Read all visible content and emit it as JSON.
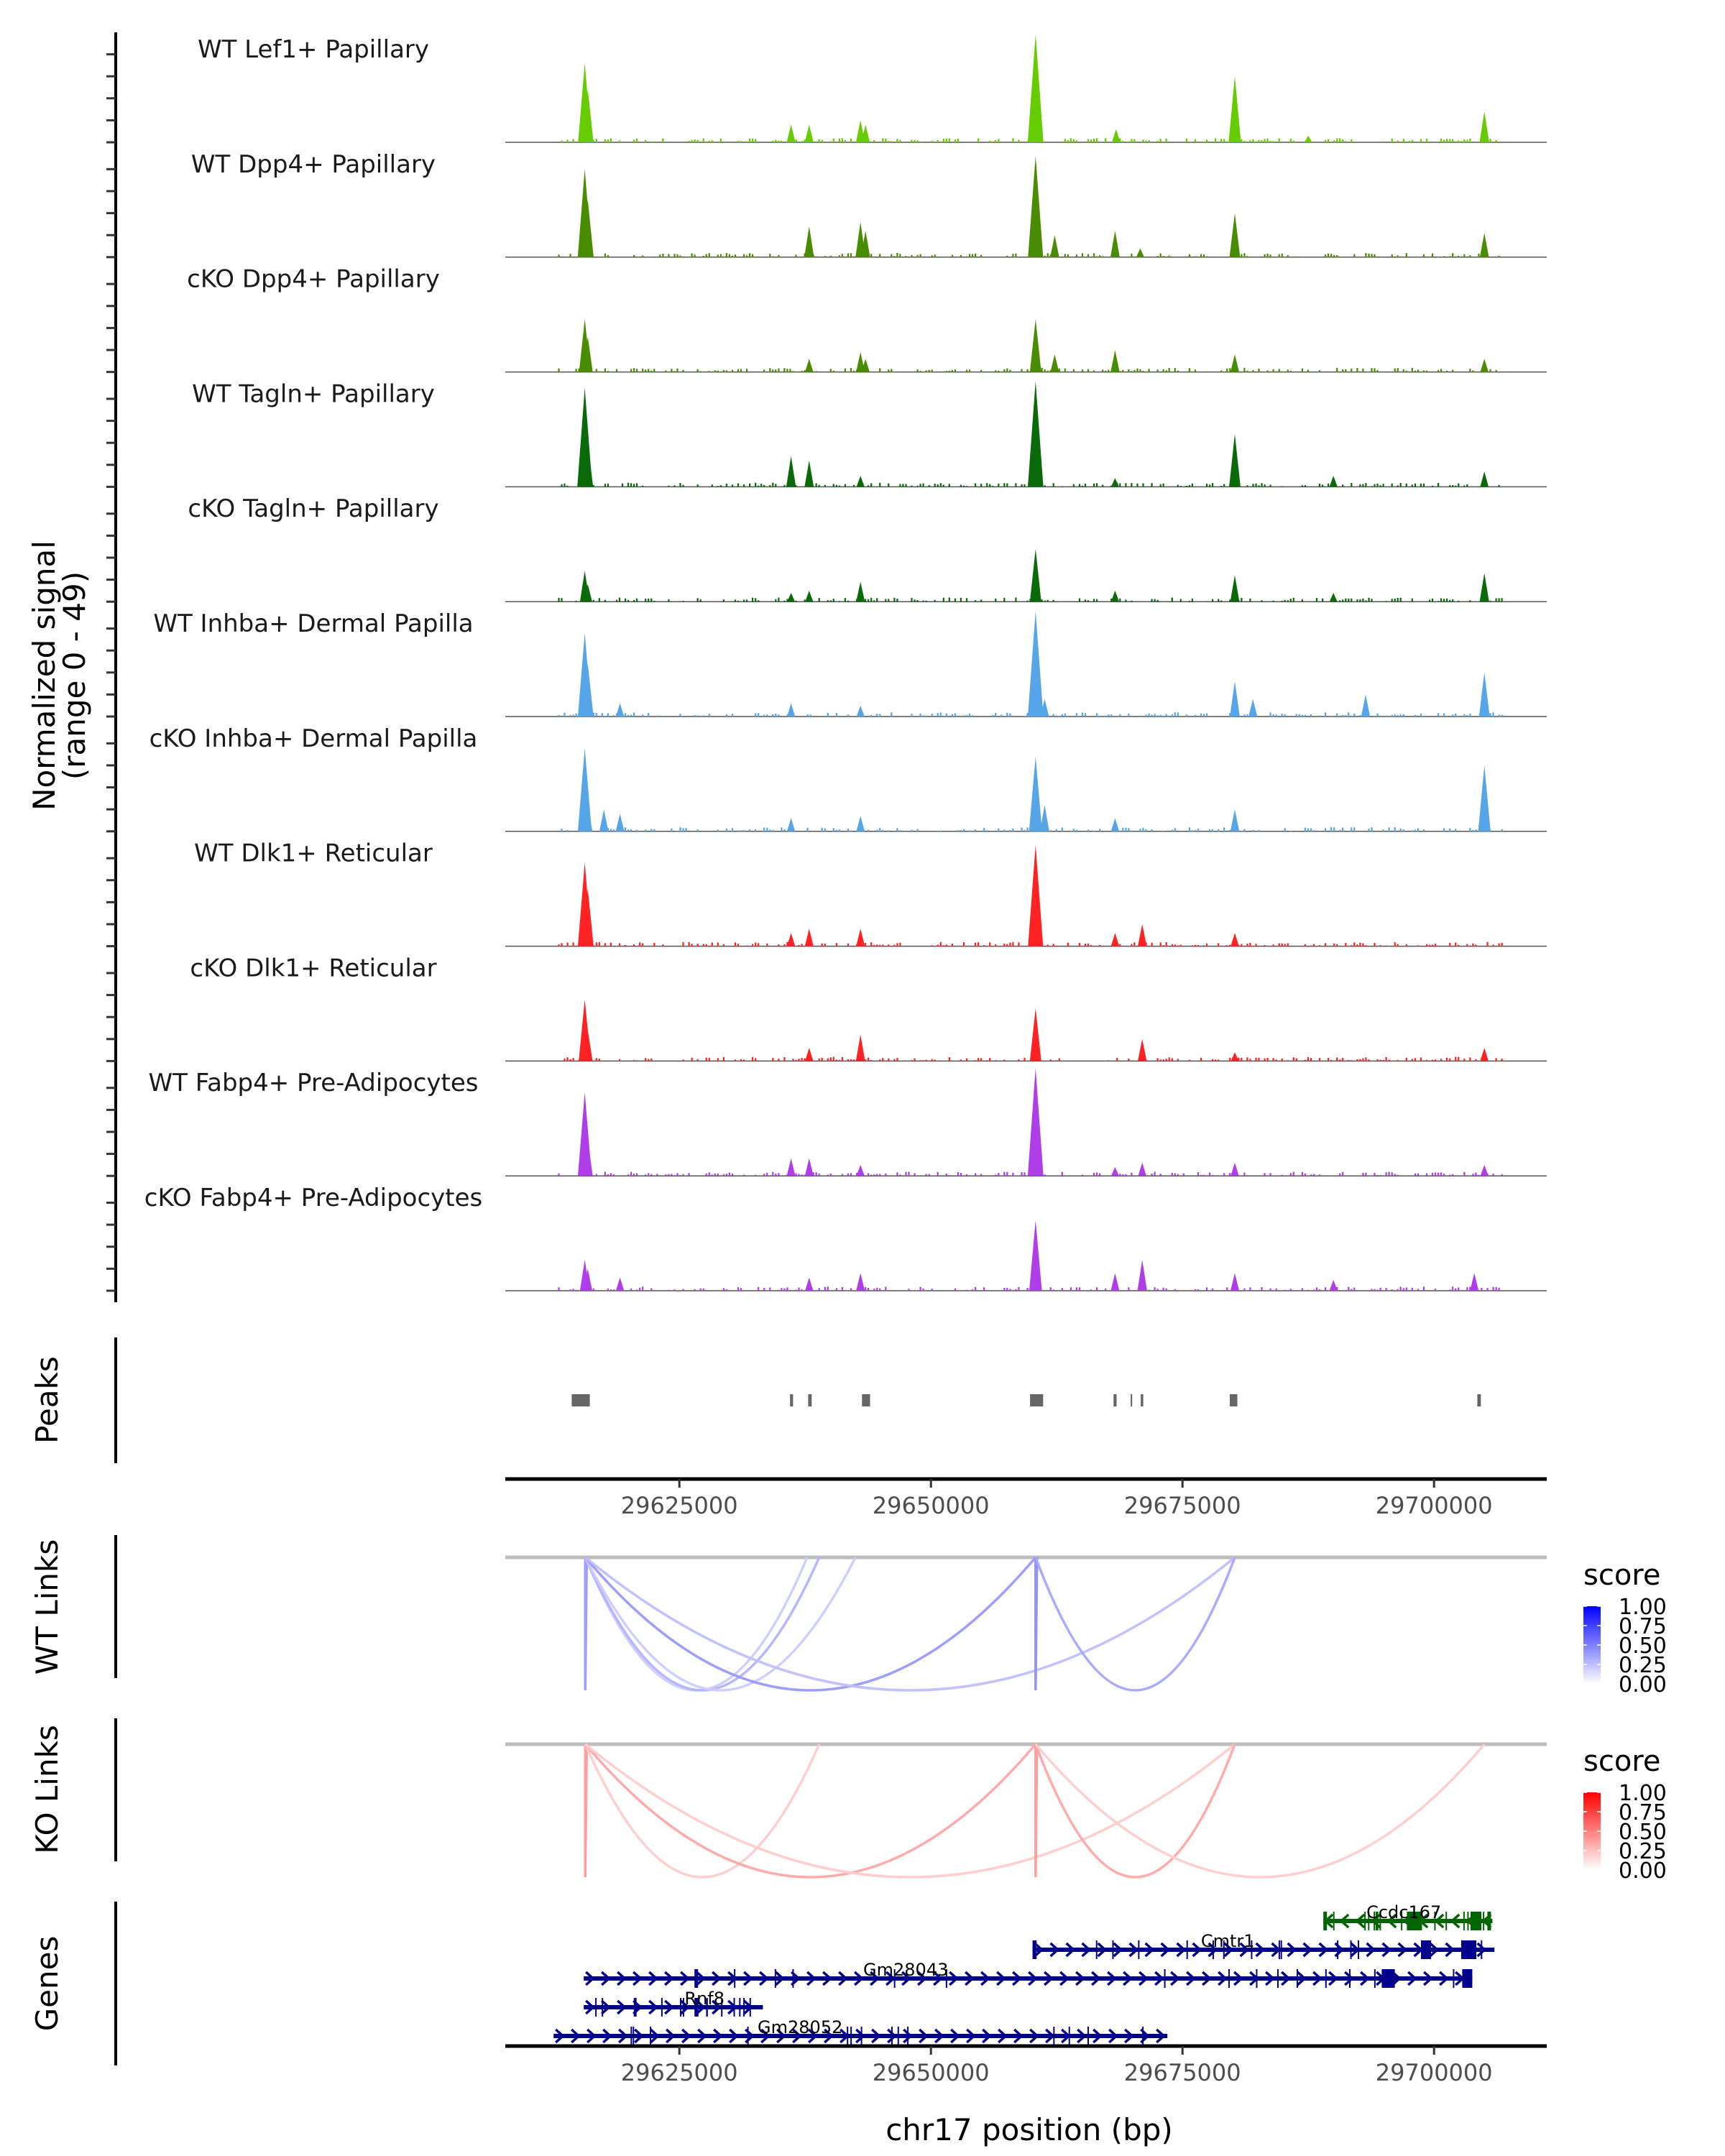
{
  "chart_data": {
    "type": "area",
    "title": "",
    "region": "chr17",
    "xlabel": "chr17 position (bp)",
    "ylabel": "Normalized signal\n(range 0 - 49)",
    "ylabel_line1": "Normalized signal",
    "ylabel_line2": "(range 0 - 49)",
    "ylim": [
      0,
      49
    ],
    "xlim": [
      29607700,
      29711200
    ],
    "x_ticks": [
      29625000,
      29650000,
      29675000,
      29700000
    ],
    "x_tick_labels": [
      "29625000",
      "29650000",
      "29675000",
      "29700000"
    ],
    "coverage_tracks": [
      {
        "name": "WT Lef1+ Papillary",
        "color": "#66cc00",
        "peaks": [
          [
            29615600,
            36
          ],
          [
            29615900,
            24
          ],
          [
            29636100,
            8
          ],
          [
            29637900,
            8
          ],
          [
            29643000,
            10
          ],
          [
            29643500,
            8
          ],
          [
            29660400,
            49
          ],
          [
            29668400,
            6
          ],
          [
            29680200,
            30
          ],
          [
            29687500,
            3
          ],
          [
            29705000,
            14
          ]
        ]
      },
      {
        "name": "WT Dpp4+ Papillary",
        "color": "#4a8c00",
        "peaks": [
          [
            29615600,
            40
          ],
          [
            29615900,
            26
          ],
          [
            29637900,
            14
          ],
          [
            29643000,
            16
          ],
          [
            29643500,
            12
          ],
          [
            29660400,
            46
          ],
          [
            29662300,
            10
          ],
          [
            29668300,
            12
          ],
          [
            29670800,
            4
          ],
          [
            29680200,
            20
          ],
          [
            29705000,
            11
          ]
        ]
      },
      {
        "name": "cKO Dpp4+ Papillary",
        "color": "#4a8c00",
        "peaks": [
          [
            29615600,
            24
          ],
          [
            29615900,
            16
          ],
          [
            29637900,
            6
          ],
          [
            29643000,
            9
          ],
          [
            29643500,
            6
          ],
          [
            29660400,
            24
          ],
          [
            29662300,
            8
          ],
          [
            29668300,
            10
          ],
          [
            29680200,
            8
          ],
          [
            29705000,
            6
          ]
        ]
      },
      {
        "name": "WT Tagln+ Papillary",
        "color": "#0a6a0a",
        "peaks": [
          [
            29615600,
            45
          ],
          [
            29615900,
            20
          ],
          [
            29636100,
            14
          ],
          [
            29637900,
            12
          ],
          [
            29643000,
            5
          ],
          [
            29660400,
            48
          ],
          [
            29668300,
            4
          ],
          [
            29680200,
            24
          ],
          [
            29690000,
            5
          ],
          [
            29705000,
            7
          ]
        ]
      },
      {
        "name": "cKO Tagln+ Papillary",
        "color": "#0a6a0a",
        "peaks": [
          [
            29615600,
            14
          ],
          [
            29615900,
            8
          ],
          [
            29636100,
            4
          ],
          [
            29637900,
            5
          ],
          [
            29643000,
            9
          ],
          [
            29660400,
            24
          ],
          [
            29668300,
            5
          ],
          [
            29680200,
            12
          ],
          [
            29690000,
            4
          ],
          [
            29705000,
            13
          ]
        ]
      },
      {
        "name": "WT Inhba+ Dermal Papilla",
        "color": "#56a5e8",
        "peaks": [
          [
            29615600,
            38
          ],
          [
            29615900,
            24
          ],
          [
            29619100,
            6
          ],
          [
            29636100,
            6
          ],
          [
            29643000,
            5
          ],
          [
            29660400,
            48
          ],
          [
            29661300,
            8
          ],
          [
            29680200,
            16
          ],
          [
            29682000,
            8
          ],
          [
            29693200,
            10
          ],
          [
            29705000,
            20
          ]
        ]
      },
      {
        "name": "cKO Inhba+ Dermal Papilla",
        "color": "#56a5e8",
        "peaks": [
          [
            29615600,
            38
          ],
          [
            29615900,
            12
          ],
          [
            29617500,
            10
          ],
          [
            29619100,
            8
          ],
          [
            29636100,
            6
          ],
          [
            29643000,
            7
          ],
          [
            29660400,
            34
          ],
          [
            29661300,
            12
          ],
          [
            29668300,
            6
          ],
          [
            29680200,
            10
          ],
          [
            29705000,
            30
          ]
        ]
      },
      {
        "name": "WT Dlk1+ Reticular",
        "color": "#ff2222",
        "peaks": [
          [
            29615600,
            38
          ],
          [
            29615900,
            26
          ],
          [
            29636100,
            6
          ],
          [
            29637900,
            8
          ],
          [
            29643000,
            8
          ],
          [
            29660400,
            46
          ],
          [
            29668300,
            6
          ],
          [
            29671000,
            10
          ],
          [
            29680200,
            6
          ]
        ]
      },
      {
        "name": "cKO Dlk1+ Reticular",
        "color": "#ff2222",
        "peaks": [
          [
            29615600,
            28
          ],
          [
            29615900,
            14
          ],
          [
            29637900,
            6
          ],
          [
            29643000,
            12
          ],
          [
            29660400,
            24
          ],
          [
            29671000,
            10
          ],
          [
            29680200,
            4
          ],
          [
            29705000,
            6
          ]
        ]
      },
      {
        "name": "WT Fabp4+ Pre-Adipocytes",
        "color": "#b03ee8",
        "peaks": [
          [
            29615600,
            38
          ],
          [
            29615900,
            16
          ],
          [
            29636100,
            8
          ],
          [
            29637900,
            8
          ],
          [
            29643000,
            5
          ],
          [
            29660400,
            49
          ],
          [
            29668300,
            4
          ],
          [
            29671000,
            6
          ],
          [
            29680200,
            6
          ],
          [
            29705000,
            5
          ]
        ]
      },
      {
        "name": "cKO Fabp4+ Pre-Adipocytes",
        "color": "#b03ee8",
        "peaks": [
          [
            29615600,
            14
          ],
          [
            29615900,
            10
          ],
          [
            29619100,
            6
          ],
          [
            29637900,
            6
          ],
          [
            29643000,
            8
          ],
          [
            29660400,
            32
          ],
          [
            29668300,
            8
          ],
          [
            29671000,
            14
          ],
          [
            29680200,
            8
          ],
          [
            29690000,
            5
          ],
          [
            29704000,
            8
          ]
        ]
      }
    ],
    "peaks_track": {
      "label": "Peaks",
      "color": "#666666",
      "regions": [
        [
          29614300,
          29616100
        ],
        [
          29636000,
          29636300
        ],
        [
          29637800,
          29638150
        ],
        [
          29643150,
          29643950
        ],
        [
          29659850,
          29661150
        ],
        [
          29668150,
          29668450
        ],
        [
          29669850,
          29670000
        ],
        [
          29670850,
          29671100
        ],
        [
          29679700,
          29680450
        ],
        [
          29704300,
          29704650
        ]
      ]
    },
    "link_tracks": [
      {
        "label": "WT Links",
        "color_low": "#ffffff",
        "color_high": "#0000ff",
        "links": [
          {
            "start": 29615650,
            "end": 29615700,
            "score": 0.4
          },
          {
            "start": 29615650,
            "end": 29637700,
            "score": 0.2
          },
          {
            "start": 29615650,
            "end": 29638900,
            "score": 0.3
          },
          {
            "start": 29615650,
            "end": 29642500,
            "score": 0.2
          },
          {
            "start": 29615650,
            "end": 29660400,
            "score": 0.4
          },
          {
            "start": 29615650,
            "end": 29680200,
            "score": 0.25
          },
          {
            "start": 29660400,
            "end": 29660450,
            "score": 0.45
          },
          {
            "start": 29660400,
            "end": 29680200,
            "score": 0.35
          }
        ]
      },
      {
        "label": "KO Links",
        "color_low": "#ffffff",
        "color_high": "#ff0000",
        "links": [
          {
            "start": 29615650,
            "end": 29615700,
            "score": 0.4
          },
          {
            "start": 29615650,
            "end": 29638900,
            "score": 0.2
          },
          {
            "start": 29615650,
            "end": 29660400,
            "score": 0.35
          },
          {
            "start": 29615650,
            "end": 29680200,
            "score": 0.2
          },
          {
            "start": 29660400,
            "end": 29660450,
            "score": 0.4
          },
          {
            "start": 29660400,
            "end": 29680200,
            "score": 0.35
          },
          {
            "start": 29660400,
            "end": 29705000,
            "score": 0.2
          }
        ]
      }
    ],
    "legends": [
      {
        "title": "score",
        "ticks": [
          "1.00",
          "0.75",
          "0.50",
          "0.25",
          "0.00"
        ],
        "color_low": "#ffffff",
        "color_high": "#0000ff"
      },
      {
        "title": "score",
        "ticks": [
          "1.00",
          "0.75",
          "0.50",
          "0.25",
          "0.00"
        ],
        "color_low": "#ffffff",
        "color_high": "#ff0000"
      }
    ],
    "genes_track": {
      "label": "Genes",
      "genes": [
        {
          "name": "Ccdc167",
          "strand": "-",
          "start": 29689000,
          "end": 29705800,
          "color": "#006400",
          "row": 0,
          "label_pos": 29697000,
          "exons": [
            [
              29689000,
              29689300
            ],
            [
              29697300,
              29698800
            ],
            [
              29703700,
              29704700
            ],
            [
              29705300,
              29705500
            ]
          ]
        },
        {
          "name": "Cmtr1",
          "strand": "+",
          "start": 29660100,
          "end": 29706000,
          "color": "#00008b",
          "row": 1,
          "label_pos": 29679500,
          "exons": [
            [
              29660100,
              29660500
            ],
            [
              29698700,
              29699700
            ],
            [
              29702700,
              29704200
            ]
          ]
        },
        {
          "name": "Gm28043",
          "strand": "+",
          "start": 29615500,
          "end": 29703800,
          "color": "#00008b",
          "row": 2,
          "label_pos": 29647500,
          "exons": [
            [
              29626500,
              29626800
            ],
            [
              29694800,
              29696100
            ],
            [
              29702800,
              29703800
            ]
          ]
        },
        {
          "name": "Rnf8",
          "strand": "+",
          "start": 29615500,
          "end": 29633300,
          "color": "#00008b",
          "row": 3,
          "label_pos": 29627500,
          "exons": [
            [
              29626500,
              29626900
            ]
          ]
        },
        {
          "name": "Gm28052",
          "strand": "+",
          "start": 29612500,
          "end": 29673500,
          "color": "#00008b",
          "row": 4,
          "label_pos": 29637000,
          "exons": []
        }
      ]
    }
  }
}
